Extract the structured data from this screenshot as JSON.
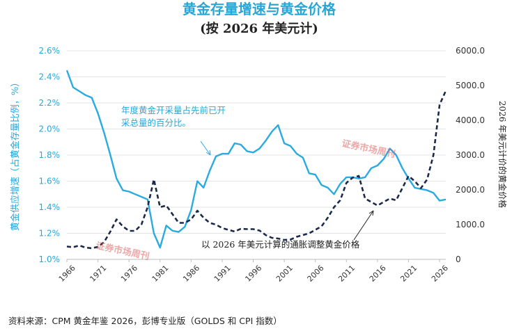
{
  "titles": {
    "line1": "黄金存量增速与黄金价格",
    "line2": "(按 2026 年美元计)"
  },
  "axes": {
    "left_label": "黄金供应增速（占黄金存量比例，%）",
    "right_label": "2026 年美元计价的黄金价格",
    "left_ticks": [
      "1.0%",
      "1.2%",
      "1.4%",
      "1.6%",
      "1.8%",
      "2.0%",
      "2.2%",
      "2.4%",
      "2.6%"
    ],
    "right_ticks": [
      "0",
      "1000.0",
      "2000.0",
      "3000.0",
      "4000.0",
      "5000.0",
      "6000.0"
    ],
    "x_ticks": [
      "1966",
      "1971",
      "1976",
      "1981",
      "1986",
      "1991",
      "1996",
      "2001",
      "2006",
      "2011",
      "2016",
      "2021",
      "2026"
    ]
  },
  "annotations": {
    "blue_line1": "年度黄金开采量占先前已开",
    "blue_line2": "采总量的百分比。",
    "dark": "以 2026 年美元计算的通胀调整黄金价格"
  },
  "watermarks": {
    "wm1": "证券市场周刊",
    "wm2": "证券市场周刊"
  },
  "source": "资料来源：CPM 黄金年鉴 2026，彭博专业版（GOLDS 和 CPI 指数）",
  "colors": {
    "supply_growth": "#29abe2",
    "gold_price": "#1b2a4a"
  },
  "chart_data": {
    "type": "line",
    "x_range": [
      1966,
      2027
    ],
    "left_ylim": [
      1.0,
      2.6
    ],
    "right_ylim": [
      0,
      6000
    ],
    "series": [
      {
        "axis": "left",
        "style": "solid",
        "x": [
          1966,
          1967,
          1968,
          1969,
          1970,
          1971,
          1972,
          1973,
          1974,
          1975,
          1976,
          1977,
          1978,
          1979,
          1980,
          1981,
          1982,
          1983,
          1984,
          1985,
          1986,
          1987,
          1988,
          1989,
          1990,
          1991,
          1992,
          1993,
          1994,
          1995,
          1996,
          1997,
          1998,
          1999,
          2000,
          2001,
          2002,
          2003,
          2004,
          2005,
          2006,
          2007,
          2008,
          2009,
          2010,
          2011,
          2012,
          2013,
          2014,
          2015,
          2016,
          2017,
          2018,
          2019,
          2020,
          2021,
          2022,
          2023,
          2024,
          2025,
          2026,
          2027
        ],
        "values": [
          2.45,
          2.32,
          2.29,
          2.26,
          2.24,
          2.12,
          1.97,
          1.8,
          1.62,
          1.53,
          1.52,
          1.5,
          1.48,
          1.46,
          1.2,
          1.09,
          1.26,
          1.22,
          1.21,
          1.25,
          1.38,
          1.6,
          1.55,
          1.68,
          1.79,
          1.81,
          1.81,
          1.89,
          1.88,
          1.83,
          1.82,
          1.85,
          1.91,
          1.98,
          2.03,
          1.89,
          1.87,
          1.81,
          1.78,
          1.66,
          1.65,
          1.57,
          1.55,
          1.5,
          1.58,
          1.63,
          1.63,
          1.62,
          1.63,
          1.7,
          1.72,
          1.77,
          1.85,
          1.8,
          1.7,
          1.62,
          1.55,
          1.54,
          1.53,
          1.51,
          1.45,
          1.46
        ]
      },
      {
        "axis": "right",
        "style": "dashed",
        "x": [
          1966,
          1967,
          1968,
          1969,
          1970,
          1971,
          1972,
          1973,
          1974,
          1975,
          1976,
          1977,
          1978,
          1979,
          1980,
          1981,
          1982,
          1983,
          1984,
          1985,
          1986,
          1987,
          1988,
          1989,
          1990,
          1991,
          1992,
          1993,
          1994,
          1995,
          1996,
          1997,
          1998,
          1999,
          2000,
          2001,
          2002,
          2003,
          2004,
          2005,
          2006,
          2007,
          2008,
          2009,
          2010,
          2011,
          2012,
          2013,
          2014,
          2015,
          2016,
          2017,
          2018,
          2019,
          2020,
          2021,
          2022,
          2023,
          2024,
          2025,
          2026,
          2027
        ],
        "values": [
          370,
          350,
          400,
          340,
          320,
          360,
          500,
          800,
          1150,
          950,
          820,
          820,
          1000,
          1500,
          2300,
          1500,
          1550,
          1300,
          1050,
          1050,
          1150,
          1400,
          1200,
          1050,
          1000,
          900,
          850,
          800,
          880,
          870,
          870,
          830,
          700,
          620,
          600,
          560,
          570,
          650,
          700,
          750,
          850,
          950,
          1200,
          1500,
          1700,
          2200,
          2350,
          2400,
          1750,
          1650,
          1550,
          1650,
          1750,
          1700,
          2050,
          2400,
          2250,
          2050,
          2300,
          3000,
          4450,
          4850
        ]
      }
    ]
  }
}
